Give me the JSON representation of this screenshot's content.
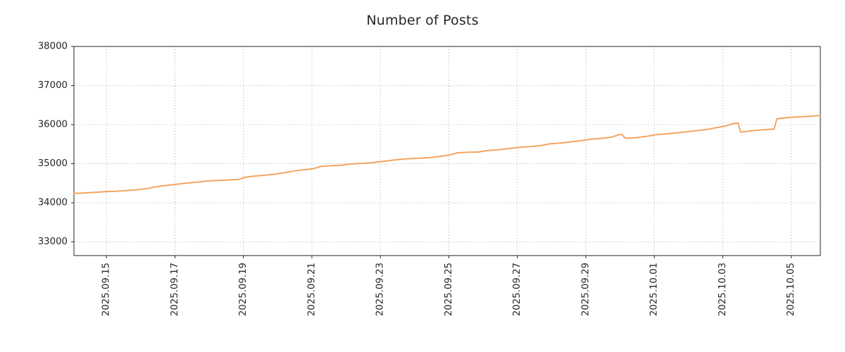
{
  "chart_data": {
    "type": "line",
    "title": "Number of Posts",
    "xlabel": "",
    "ylabel": "",
    "grid": true,
    "legend": false,
    "x_unit": "day index (15 = 2025.09.15 ... 35 = 2025.10.05)",
    "xlim": [
      14.05,
      35.85
    ],
    "ylim": [
      32650,
      38000
    ],
    "y_ticks": [
      {
        "pos": 33000,
        "label": "33000"
      },
      {
        "pos": 34000,
        "label": "34000"
      },
      {
        "pos": 35000,
        "label": "35000"
      },
      {
        "pos": 36000,
        "label": "36000"
      },
      {
        "pos": 37000,
        "label": "37000"
      },
      {
        "pos": 38000,
        "label": "38000"
      }
    ],
    "x_ticks": [
      {
        "pos": 15,
        "label": "2025.09.15"
      },
      {
        "pos": 17,
        "label": "2025.09.17"
      },
      {
        "pos": 19,
        "label": "2025.09.19"
      },
      {
        "pos": 21,
        "label": "2025.09.21"
      },
      {
        "pos": 23,
        "label": "2025.09.23"
      },
      {
        "pos": 25,
        "label": "2025.09.25"
      },
      {
        "pos": 27,
        "label": "2025.09.27"
      },
      {
        "pos": 29,
        "label": "2025.09.29"
      },
      {
        "pos": 31,
        "label": "2025.10.01"
      },
      {
        "pos": 33,
        "label": "2025.10.03"
      },
      {
        "pos": 35,
        "label": "2025.10.05"
      }
    ],
    "colors": {
      "grid": "#b0b0b0",
      "axis": "#262626",
      "text": "#262626",
      "background": "#ffffff",
      "series": "#f4a460"
    },
    "series": [
      {
        "name": "posts",
        "color": "#f4a460",
        "points": [
          [
            14.05,
            34238
          ],
          [
            14.35,
            34252
          ],
          [
            14.65,
            34268
          ],
          [
            14.95,
            34285
          ],
          [
            15.25,
            34295
          ],
          [
            15.55,
            34310
          ],
          [
            15.85,
            34328
          ],
          [
            16.15,
            34360
          ],
          [
            16.45,
            34410
          ],
          [
            16.75,
            34445
          ],
          [
            17.05,
            34475
          ],
          [
            17.35,
            34505
          ],
          [
            17.65,
            34530
          ],
          [
            17.95,
            34558
          ],
          [
            18.25,
            34572
          ],
          [
            18.55,
            34582
          ],
          [
            18.85,
            34598
          ],
          [
            19.05,
            34655
          ],
          [
            19.35,
            34685
          ],
          [
            19.65,
            34708
          ],
          [
            19.95,
            34738
          ],
          [
            20.25,
            34778
          ],
          [
            20.55,
            34825
          ],
          [
            20.85,
            34852
          ],
          [
            21.05,
            34872
          ],
          [
            21.25,
            34928
          ],
          [
            21.55,
            34948
          ],
          [
            21.85,
            34962
          ],
          [
            22.05,
            34988
          ],
          [
            22.35,
            35002
          ],
          [
            22.65,
            35018
          ],
          [
            22.95,
            35048
          ],
          [
            23.25,
            35078
          ],
          [
            23.55,
            35108
          ],
          [
            23.85,
            35128
          ],
          [
            24.15,
            35142
          ],
          [
            24.45,
            35155
          ],
          [
            24.75,
            35188
          ],
          [
            25.05,
            35228
          ],
          [
            25.25,
            35278
          ],
          [
            25.55,
            35292
          ],
          [
            25.85,
            35298
          ],
          [
            26.15,
            35338
          ],
          [
            26.45,
            35358
          ],
          [
            26.75,
            35388
          ],
          [
            27.05,
            35418
          ],
          [
            27.35,
            35438
          ],
          [
            27.65,
            35458
          ],
          [
            27.95,
            35508
          ],
          [
            28.25,
            35528
          ],
          [
            28.55,
            35558
          ],
          [
            28.85,
            35588
          ],
          [
            29.15,
            35628
          ],
          [
            29.45,
            35648
          ],
          [
            29.75,
            35678
          ],
          [
            29.95,
            35738
          ],
          [
            30.05,
            35752
          ],
          [
            30.15,
            35652
          ],
          [
            30.45,
            35662
          ],
          [
            30.75,
            35698
          ],
          [
            31.05,
            35742
          ],
          [
            31.35,
            35762
          ],
          [
            31.65,
            35788
          ],
          [
            31.95,
            35818
          ],
          [
            32.25,
            35848
          ],
          [
            32.55,
            35878
          ],
          [
            32.85,
            35928
          ],
          [
            33.1,
            35968
          ],
          [
            33.3,
            36028
          ],
          [
            33.45,
            36042
          ],
          [
            33.52,
            35808
          ],
          [
            33.8,
            35838
          ],
          [
            34.1,
            35862
          ],
          [
            34.5,
            35888
          ],
          [
            34.58,
            36148
          ],
          [
            34.8,
            36172
          ],
          [
            35.0,
            36188
          ],
          [
            35.3,
            36202
          ],
          [
            35.6,
            36218
          ],
          [
            35.85,
            36232
          ]
        ]
      }
    ]
  }
}
